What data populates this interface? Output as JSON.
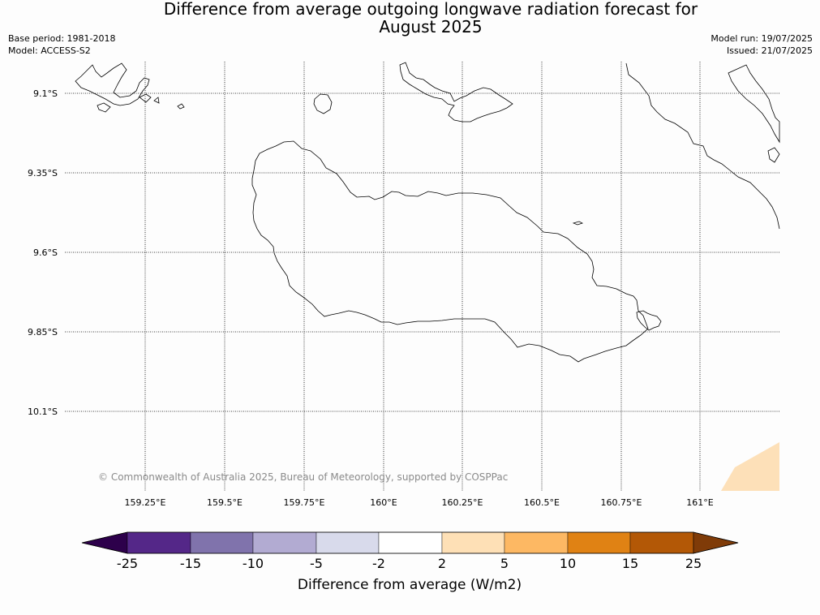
{
  "header": {
    "title_line1": "Difference from average outgoing longwave radiation forecast for",
    "title_line2": "August 2025",
    "base_period": "Base period: 1981-2018",
    "model": "Model: ACCESS-S2",
    "model_run": "Model run: 19/07/2025",
    "issued": "Issued: 21/07/2025"
  },
  "map": {
    "latitudes": [
      "9.1°S",
      "9.35°S",
      "9.6°S",
      "9.85°S",
      "10.1°S"
    ],
    "longitudes": [
      "159.25°E",
      "159.5°E",
      "159.75°E",
      "160°E",
      "160.25°E",
      "160.5°E",
      "160.75°E",
      "161°E"
    ],
    "copyright": "© Commonwealth of Australia 2025, Bureau of Meteorology, supported by COSPPac",
    "anomaly_fill_color": "#fde0b8"
  },
  "colorbar": {
    "title": "Difference from average (W/m2)",
    "tick_labels": [
      "-25",
      "-15",
      "-10",
      "-5",
      "-2",
      "2",
      "5",
      "10",
      "15",
      "25"
    ],
    "low_extend_color": "#2d004b",
    "high_extend_color": "#7f3b08",
    "bins": [
      {
        "from": "-25",
        "to": "-15",
        "color": "#542788"
      },
      {
        "from": "-15",
        "to": "-10",
        "color": "#8073ac"
      },
      {
        "from": "-10",
        "to": "-5",
        "color": "#b2abd2"
      },
      {
        "from": "-5",
        "to": "-2",
        "color": "#d8daeb"
      },
      {
        "from": "-2",
        "to": "2",
        "color": "#ffffff"
      },
      {
        "from": "2",
        "to": "5",
        "color": "#fee0b6"
      },
      {
        "from": "5",
        "to": "10",
        "color": "#fdb863"
      },
      {
        "from": "10",
        "to": "15",
        "color": "#e08214"
      },
      {
        "from": "15",
        "to": "25",
        "color": "#b35806"
      }
    ]
  }
}
